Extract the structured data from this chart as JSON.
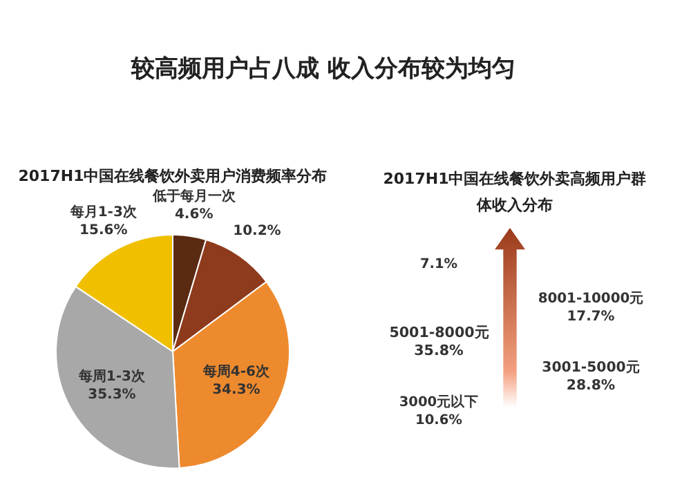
{
  "chart_data": [
    {
      "type": "pie",
      "title": "2017H1中国在线餐饮外卖用户消费频率分布",
      "annotations": [
        "较高频用户占八成 收入分布较为均匀"
      ],
      "categories": [
        "低于每月一次",
        null,
        "每周4-6次",
        "每周1-3次",
        "每月1-3次"
      ],
      "values": [
        4.6,
        10.2,
        34.3,
        35.3,
        15.6
      ],
      "value_labels": [
        "4.6%",
        "10.2%",
        "34.3%",
        "35.3%",
        "15.6%"
      ],
      "colors": [
        "#5a2a12",
        "#8e3a1c",
        "#ee8a2e",
        "#a8a8a8",
        "#f0c000"
      ]
    },
    {
      "type": "other",
      "title": "2017H1中国在线餐饮外卖高频用户群体收入分布",
      "categories": [
        null,
        "8001-10000元",
        "5001-8000元",
        "3001-5000元",
        "3000元以下"
      ],
      "values": [
        7.1,
        17.7,
        35.8,
        28.8,
        10.6
      ],
      "value_labels": [
        "7.1%",
        "17.7%",
        "35.8%",
        "28.8%",
        "10.6%"
      ]
    }
  ]
}
